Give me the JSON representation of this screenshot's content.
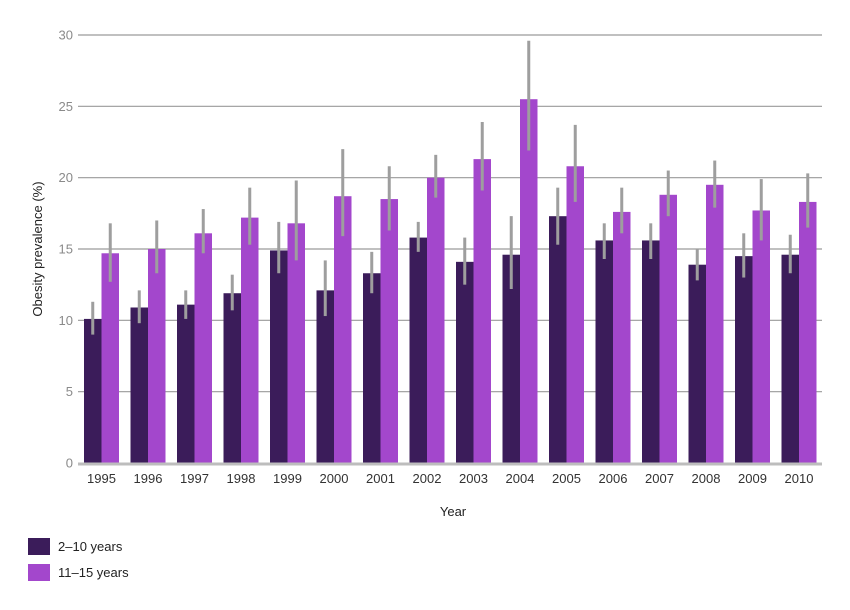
{
  "chart_data": {
    "type": "bar",
    "title": "",
    "xlabel": "Year",
    "ylabel": "Obesity prevalence (%)",
    "ylim": [
      0,
      30
    ],
    "yticks": [
      0,
      5,
      10,
      15,
      20,
      25,
      30
    ],
    "grid": "horizontal",
    "legend_position": "bottom-left",
    "categories": [
      "1995",
      "1996",
      "1997",
      "1998",
      "1999",
      "2000",
      "2001",
      "2002",
      "2003",
      "2004",
      "2005",
      "2006",
      "2007",
      "2008",
      "2009",
      "2010"
    ],
    "series": [
      {
        "name": "2–10 years",
        "color": "#3b1c5a",
        "values": [
          10.1,
          10.9,
          11.1,
          11.9,
          14.9,
          12.1,
          13.3,
          15.8,
          14.1,
          14.6,
          17.3,
          15.6,
          15.6,
          13.9,
          14.5,
          14.6
        ],
        "error_low": [
          9.0,
          9.8,
          10.1,
          10.7,
          13.3,
          10.3,
          11.9,
          14.8,
          12.5,
          12.2,
          15.3,
          14.3,
          14.3,
          12.8,
          13.0,
          13.3
        ],
        "error_high": [
          11.3,
          12.1,
          12.1,
          13.2,
          16.9,
          14.2,
          14.8,
          16.9,
          15.8,
          17.3,
          19.3,
          16.8,
          16.8,
          15.0,
          16.1,
          16.0
        ]
      },
      {
        "name": "11–15 years",
        "color": "#a347cc",
        "values": [
          14.7,
          15.0,
          16.1,
          17.2,
          16.8,
          18.7,
          18.5,
          20.0,
          21.3,
          25.5,
          20.8,
          17.6,
          18.8,
          19.5,
          17.7,
          18.3
        ],
        "error_low": [
          12.7,
          13.3,
          14.7,
          15.3,
          14.2,
          15.9,
          16.3,
          18.6,
          19.1,
          21.9,
          18.3,
          16.1,
          17.3,
          17.9,
          15.6,
          16.5
        ],
        "error_high": [
          16.8,
          17.0,
          17.8,
          19.3,
          19.8,
          22.0,
          20.8,
          21.6,
          23.9,
          29.6,
          23.7,
          19.3,
          20.5,
          21.2,
          19.9,
          20.3
        ]
      }
    ]
  }
}
